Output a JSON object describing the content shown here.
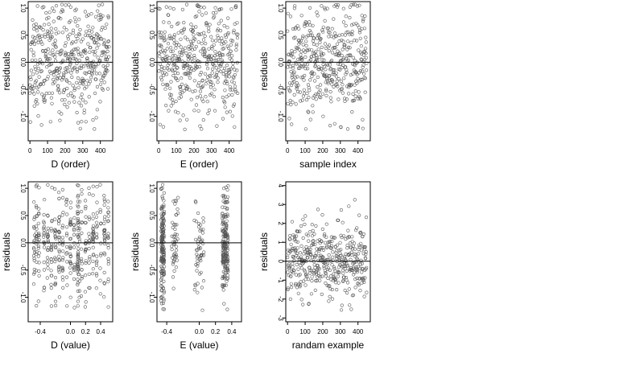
{
  "chart_data": [
    {
      "type": "scatter",
      "xlabel": "D (order)",
      "ylabel": "residuals",
      "xlim": [
        -10,
        470
      ],
      "ylim": [
        -1.45,
        1.12
      ],
      "xticks": [
        0,
        100,
        200,
        300,
        400
      ],
      "yticks": [
        -1.0,
        -0.5,
        0.0,
        0.5,
        1.0
      ],
      "yticklabels": [
        "-1.0",
        "-0.5",
        "0.0",
        "0.5",
        "1.0"
      ],
      "hline": 0,
      "n_points": 450,
      "point_style": "open-circle",
      "point_color": "#555555",
      "x_distribution": "uniform",
      "residual_spread": 0.5,
      "seed": 11
    },
    {
      "type": "scatter",
      "xlabel": "E (order)",
      "ylabel": "residuals",
      "xlim": [
        -10,
        470
      ],
      "ylim": [
        -1.45,
        1.12
      ],
      "xticks": [
        0,
        100,
        200,
        300,
        400
      ],
      "yticks": [
        -1.0,
        -0.5,
        0.0,
        0.5,
        1.0
      ],
      "yticklabels": [
        "-1.0",
        "-0.5",
        "0.0",
        "0.5",
        "1.0"
      ],
      "hline": 0,
      "n_points": 450,
      "point_style": "open-circle",
      "point_color": "#555555",
      "x_distribution": "uniform",
      "residual_spread": 0.5,
      "seed": 23
    },
    {
      "type": "scatter",
      "xlabel": "sample index",
      "ylabel": "residuals",
      "xlim": [
        -10,
        470
      ],
      "ylim": [
        -1.45,
        1.12
      ],
      "xticks": [
        0,
        100,
        200,
        300,
        400
      ],
      "yticks": [
        -1.0,
        -0.5,
        0.0,
        0.5,
        1.0
      ],
      "yticklabels": [
        "-1.0",
        "-0.5",
        "0.0",
        "0.5",
        "1.0"
      ],
      "hline": 0,
      "n_points": 450,
      "point_style": "open-circle",
      "point_color": "#555555",
      "x_distribution": "uniform",
      "residual_spread": 0.5,
      "seed": 37
    },
    {
      "type": "scatter",
      "xlabel": "D (value)",
      "ylabel": "residuals",
      "xlim": [
        -0.56,
        0.56
      ],
      "ylim": [
        -1.45,
        1.12
      ],
      "xticks": [
        -0.4,
        0.0,
        0.2,
        0.4
      ],
      "xticklabels": [
        "-0.4",
        "0.0",
        "0.2",
        "0.4"
      ],
      "yticks": [
        -1.0,
        -0.5,
        0.0,
        0.5,
        1.0
      ],
      "yticklabels": [
        "-1.0",
        "-0.5",
        "0.0",
        "0.5",
        "1.0"
      ],
      "hline": 0,
      "n_points": 450,
      "point_style": "open-circle",
      "point_color": "#555555",
      "x_distribution": "columns",
      "x_columns": [
        -0.48,
        -0.45,
        -0.42,
        -0.35,
        -0.3,
        -0.25,
        -0.2,
        -0.15,
        -0.1,
        -0.05,
        0.0,
        0.05,
        0.1,
        0.1,
        0.12,
        0.15,
        0.2,
        0.25,
        0.3,
        0.35,
        0.4,
        0.45,
        0.5
      ],
      "residual_spread": 0.5,
      "seed": 53
    },
    {
      "type": "scatter",
      "xlabel": "E (value)",
      "ylabel": "residuals",
      "xlim": [
        -0.52,
        0.52
      ],
      "ylim": [
        -1.45,
        1.12
      ],
      "xticks": [
        -0.4,
        0.0,
        0.2,
        0.4
      ],
      "xticklabels": [
        "-0.4",
        "0.0",
        "0.2",
        "0.4"
      ],
      "yticks": [
        -1.0,
        -0.5,
        0.0,
        0.5,
        1.0
      ],
      "yticklabels": [
        "-1.0",
        "-0.5",
        "0.0",
        "0.5",
        "1.0"
      ],
      "hline": 0,
      "n_points": 450,
      "point_style": "open-circle",
      "point_color": "#555555",
      "x_distribution": "clusters",
      "x_clusters": [
        {
          "center": -0.45,
          "width": 0.04,
          "weight": 0.36
        },
        {
          "center": -0.3,
          "width": 0.08,
          "weight": 0.1
        },
        {
          "center": 0.0,
          "width": 0.12,
          "weight": 0.12
        },
        {
          "center": 0.32,
          "width": 0.07,
          "weight": 0.42
        }
      ],
      "residual_spread": 0.5,
      "seed": 71
    },
    {
      "type": "scatter",
      "xlabel": "randam example",
      "ylabel": "residuals",
      "xlim": [
        -10,
        470
      ],
      "ylim": [
        -3.2,
        4.2
      ],
      "xticks": [
        0,
        100,
        200,
        300,
        400
      ],
      "yticks": [
        -3,
        -2,
        -1,
        0,
        1,
        2,
        3,
        4
      ],
      "yticklabels": [
        "-3",
        "-2",
        "-1",
        "0",
        "1",
        "2",
        "3",
        "4"
      ],
      "hline": 0,
      "n_points": 450,
      "point_style": "open-circle",
      "point_color": "#555555",
      "x_distribution": "uniform",
      "residual_spread": 1.0,
      "seed": 97
    }
  ]
}
